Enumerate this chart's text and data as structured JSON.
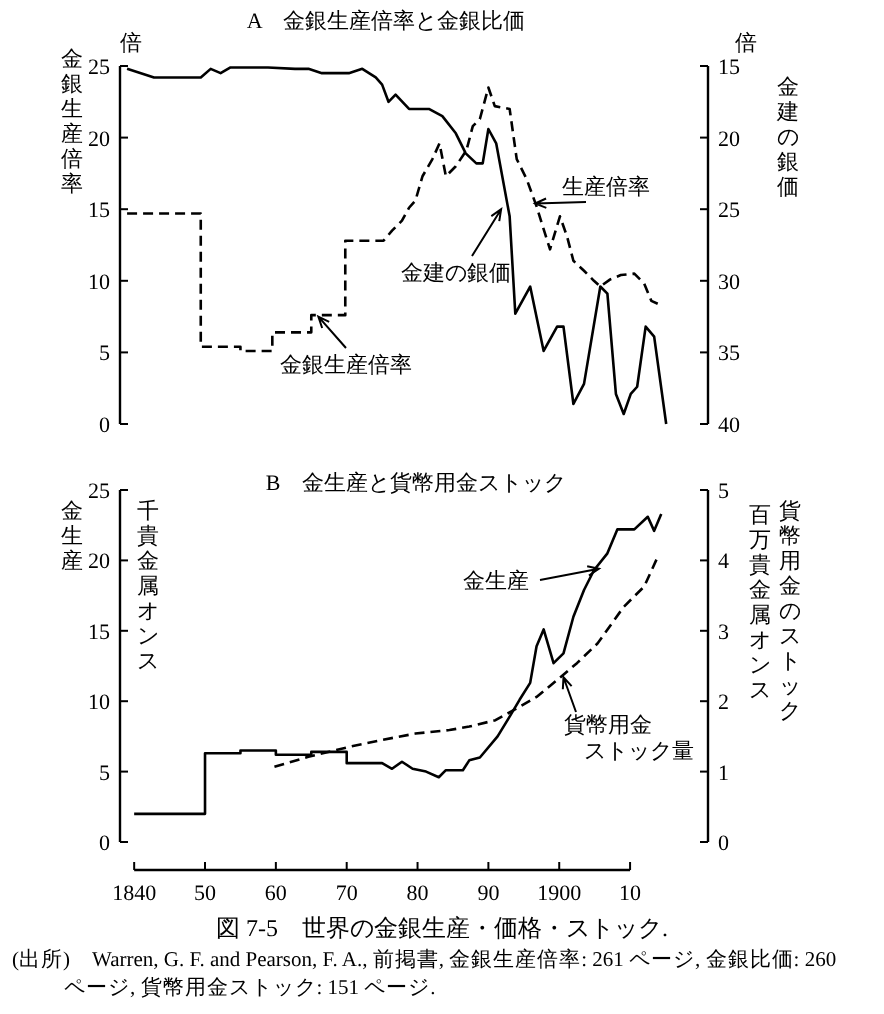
{
  "chart_data": [
    {
      "type": "line",
      "title": "A　金銀生産倍率と金銀比価",
      "ylabel": "金銀生産倍率",
      "y2label": "金建の銀価",
      "xlim": [
        1838,
        1921
      ],
      "ylim": [
        0,
        25
      ],
      "yticks": [
        0,
        5,
        10,
        15,
        20,
        25
      ],
      "y2lim": [
        40,
        15
      ],
      "y2ticks": [
        15,
        20,
        25,
        30,
        35,
        40
      ],
      "tick_labels": "y",
      "series": [
        {
          "color": "#000000",
          "line_style": "dashed",
          "axis": "y",
          "x": [
            1839,
            1849.4,
            1849.4,
            1855,
            1855,
            1859.5,
            1859.5,
            1865,
            1865,
            1869.8,
            1869.8,
            1875.2,
            1876.4,
            1877.8,
            1878.8,
            1879.7,
            1880.7,
            1882.1,
            1883.1,
            1884,
            1885.4,
            1886.9,
            1887.8,
            1888.8,
            1890,
            1890.9,
            1893,
            1894,
            1895.4,
            1896.8,
            1897.8,
            1898.7,
            1900.1,
            1901.1,
            1902,
            1903.5,
            1904.9,
            1905.8,
            1907.2,
            1908.7,
            1910.6,
            1912,
            1913,
            1913.9
          ],
          "values": [
            14.7,
            14.7,
            5.4,
            5.4,
            5.1,
            5.1,
            6.4,
            6.4,
            7.6,
            7.6,
            12.8,
            12.8,
            13.5,
            14.2,
            15.1,
            15.6,
            17.3,
            18.5,
            19.6,
            17.3,
            18,
            19.1,
            20.8,
            21.3,
            23.5,
            22.2,
            22,
            18.5,
            17.1,
            15.2,
            13.6,
            12.2,
            14.5,
            13.1,
            11.4,
            10.7,
            10,
            9.6,
            10.1,
            10.4,
            10.5,
            9.8,
            8.6,
            8.4
          ]
        },
        {
          "color": "#000000",
          "line_style": "solid",
          "axis": "y2",
          "x": [
            1839,
            1842.8,
            1846.6,
            1849.4,
            1850.8,
            1852.2,
            1853.6,
            1858.9,
            1862.7,
            1864.6,
            1866.5,
            1870.3,
            1872.2,
            1874.1,
            1875,
            1875.9,
            1876.9,
            1878.8,
            1881.6,
            1883.5,
            1885.4,
            1886.8,
            1888.3,
            1889.2,
            1890,
            1891.1,
            1893,
            1893.8,
            1895.9,
            1897.8,
            1899.7,
            1900.6,
            1902,
            1903.5,
            1905.8,
            1906.8,
            1908,
            1909.1,
            1910.1,
            1911,
            1912.2,
            1913.4,
            1915.1
          ],
          "values": [
            15.2,
            15.8,
            15.8,
            15.8,
            15.2,
            15.5,
            15.1,
            15.1,
            15.2,
            15.2,
            15.5,
            15.5,
            15.2,
            15.8,
            16.3,
            17.5,
            17,
            18,
            18,
            18.5,
            19.7,
            21.1,
            21.8,
            21.8,
            19.4,
            20.4,
            25.5,
            32.3,
            30.4,
            34.9,
            33.2,
            33.2,
            38.6,
            37.2,
            30.4,
            30.9,
            37.9,
            39.3,
            37.9,
            37.4,
            33.2,
            33.9,
            40
          ]
        }
      ],
      "annotations": [
        "倍",
        "倍",
        {
          "text": "金銀生産倍率",
          "x": 1866,
          "y": 7.5
        },
        {
          "text": "金建の銀価",
          "x": 1891.8,
          "y": 15
        },
        {
          "text": "生産倍率",
          "x": 1896.6,
          "y": 15.4
        }
      ]
    },
    {
      "type": "line",
      "title": "B　金生産と貨幣用金ストック",
      "ylabel": "金生産",
      "y2label": "貨幣用金のストック",
      "xlim": [
        1838,
        1921
      ],
      "xticks": [
        1840,
        {
          "value": 1850,
          "label": "50"
        },
        {
          "value": 1860,
          "label": "60"
        },
        {
          "value": 1870,
          "label": "70"
        },
        {
          "value": 1880,
          "label": "80"
        },
        {
          "value": 1890,
          "label": "90"
        },
        1900,
        {
          "value": 1910,
          "label": "10"
        }
      ],
      "ylim": [
        0,
        25
      ],
      "yticks": [
        0,
        5,
        10,
        15,
        20,
        25
      ],
      "y2lim": [
        0,
        5
      ],
      "y2ticks": [
        0,
        1,
        2,
        3,
        4,
        5
      ],
      "series": [
        {
          "color": "#000000",
          "line_style": "solid",
          "axis": "y",
          "x": [
            1840,
            1850,
            1850,
            1855,
            1855,
            1860,
            1860,
            1865,
            1865,
            1870,
            1870,
            1875,
            1876.4,
            1877.8,
            1879.3,
            1881.2,
            1883,
            1884,
            1886.4,
            1887.3,
            1888.8,
            1891.3,
            1893,
            1894.4,
            1895.9,
            1896.8,
            1897.8,
            1899.2,
            1900.6,
            1902,
            1903.5,
            1904.9,
            1906.8,
            1908.2,
            1910.6,
            1912.5,
            1913.4,
            1914.4
          ],
          "values": [
            2,
            2,
            6.3,
            6.3,
            6.5,
            6.5,
            6.2,
            6.2,
            6.4,
            6.4,
            5.6,
            5.6,
            5.2,
            5.7,
            5.2,
            5,
            4.6,
            5.1,
            5.1,
            5.8,
            6,
            7.5,
            8.9,
            10.1,
            11.3,
            13.9,
            15.1,
            12.7,
            13.4,
            16,
            17.9,
            19.3,
            20.5,
            22.2,
            22.2,
            23.1,
            22.1,
            23.3
          ]
        },
        {
          "color": "#000000",
          "line_style": "dashed",
          "axis": "y2",
          "x": [
            1859.8,
            1864.6,
            1870.3,
            1875,
            1879.7,
            1884.5,
            1887.3,
            1891,
            1894.4,
            1896.8,
            1899.7,
            1902.5,
            1905.4,
            1909.1,
            1912,
            1913.9
          ],
          "values": [
            1.07,
            1.21,
            1.35,
            1.45,
            1.54,
            1.59,
            1.64,
            1.73,
            1.92,
            2.06,
            2.3,
            2.54,
            2.82,
            3.34,
            3.63,
            4.05
          ]
        }
      ],
      "annotations": [
        "千貴金属オンス",
        "百万貴金属オンス",
        {
          "text": "金生産",
          "x": 1905.6,
          "y": 19.4
        },
        {
          "text": "貨幣用金ストック量",
          "x": 1900.6,
          "y": 11.7
        },
        "図 7-5　世界の金銀生産・価格・ストック.",
        "(出所)　Warren, G. F. and Pearson, F. A., 前掲書, 金銀生産倍率: 261 ページ, 金銀比価: 260 ページ, 貨幣用金ストック: 151 ページ."
      ]
    }
  ]
}
